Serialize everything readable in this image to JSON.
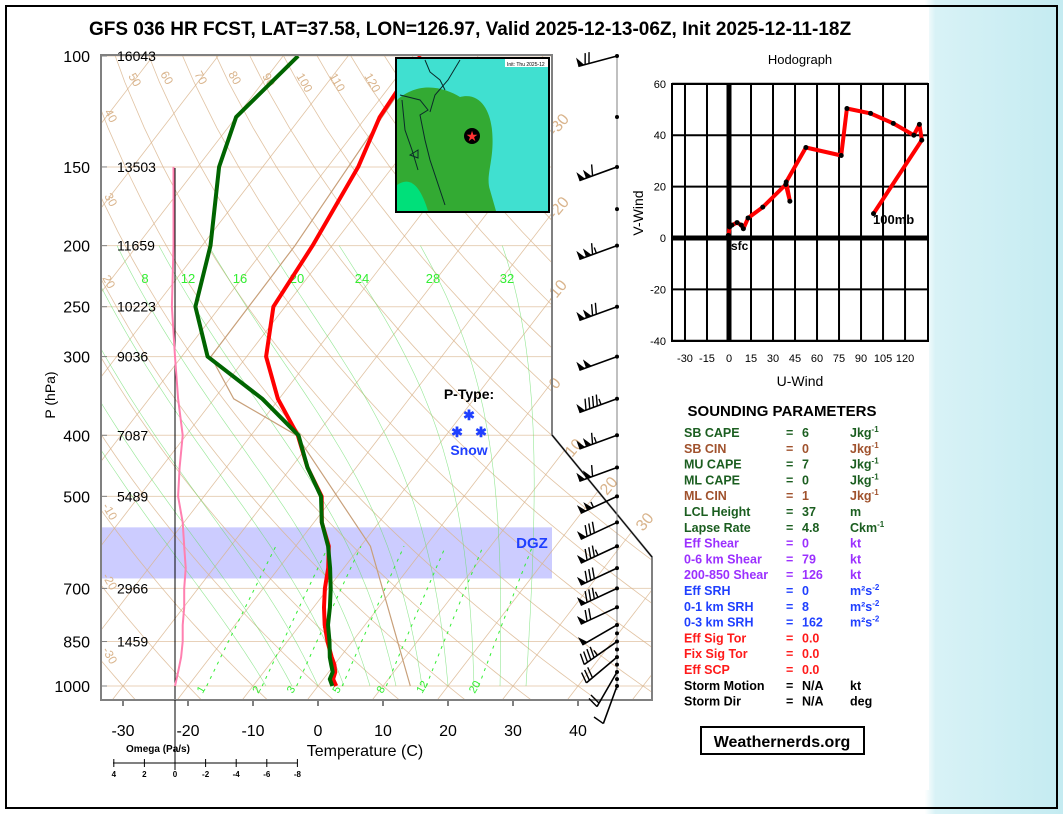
{
  "title": "GFS 036 HR FCST, LAT=37.58, LON=126.97, Valid 2025-12-13-06Z, Init 2025-12-11-18Z",
  "skewt": {
    "ylabel": "P (hPa)",
    "xlabel": "Temperature (C)",
    "pressure_labels": [
      {
        "p": 100,
        "label": "100",
        "height": "16043"
      },
      {
        "p": 150,
        "label": "150",
        "height": "13503"
      },
      {
        "p": 200,
        "label": "200",
        "height": "11659"
      },
      {
        "p": 250,
        "label": "250",
        "height": "10223"
      },
      {
        "p": 300,
        "label": "300",
        "height": "9036"
      },
      {
        "p": 400,
        "label": "400",
        "height": "7087"
      },
      {
        "p": 500,
        "label": "500",
        "height": "5489"
      },
      {
        "p": 700,
        "label": "700",
        "height": "2966"
      },
      {
        "p": 850,
        "label": "850",
        "height": "1459"
      },
      {
        "p": 1000,
        "label": "1000",
        "height": ""
      }
    ],
    "temp_ticks": [
      "-30",
      "-20",
      "-10",
      "0",
      "10",
      "20",
      "30",
      "40"
    ],
    "temp_tick_values": [
      -30,
      -20,
      -10,
      0,
      10,
      20,
      30,
      40
    ],
    "omega": {
      "title": "Omega (Pa/s)",
      "ticks": [
        "4",
        "2",
        "0",
        "-2",
        "-4",
        "-6",
        "-8"
      ],
      "tick_values": [
        4,
        2,
        0,
        -2,
        -4,
        -6,
        -8
      ]
    },
    "mixing_ratio_labels": [
      "1",
      "2",
      "3",
      "5",
      "8",
      "12",
      "20"
    ],
    "mixing_ratio_values": [
      1,
      2,
      3,
      5,
      8,
      12,
      20
    ],
    "moist_labels": [
      "8",
      "12",
      "16",
      "20",
      "24",
      "28",
      "32"
    ],
    "theta_top_labels": [
      "50",
      "60",
      "70",
      "80",
      "90",
      "100",
      "110",
      "120"
    ],
    "theta_left_labels": [
      "40",
      "30",
      "20",
      "-10",
      "-20",
      "-30"
    ],
    "isotherm_right_labels": [
      "-30",
      "-20",
      "-10",
      "0",
      "10",
      "20",
      "30"
    ],
    "dgz_label": "DGZ",
    "dgz_range_hpa": [
      560,
      675
    ],
    "ptype": {
      "title": "P-Type:",
      "value": "Snow",
      "symbol": "✱"
    }
  },
  "chart_data": [
    {
      "type": "line",
      "title": "Skew-T log-P sounding",
      "xlabel": "Temperature (C)",
      "ylabel": "P (hPa)",
      "xlim": [
        -35,
        45
      ],
      "ylim": [
        1000,
        100
      ],
      "pressure": [
        1000,
        975,
        950,
        925,
        900,
        850,
        800,
        750,
        700,
        650,
        600,
        550,
        500,
        450,
        400,
        350,
        300,
        250,
        200,
        150,
        125,
        100
      ],
      "series": [
        {
          "name": "Temperature",
          "color": "#ff0000",
          "values": [
            2.8,
            1.5,
            1.0,
            0.0,
            -1.3,
            -3.8,
            -6.2,
            -8.4,
            -10.5,
            -12.4,
            -14.9,
            -18.8,
            -21.9,
            -27.5,
            -32.8,
            -40.2,
            -47.0,
            -51.8,
            -53.0,
            -55.3,
            -57.9,
            -58.9
          ]
        },
        {
          "name": "Dewpoint",
          "color": "#006400",
          "values": [
            2.2,
            1.0,
            0.6,
            -0.5,
            -1.6,
            -3.5,
            -5.7,
            -7.5,
            -9.6,
            -12.1,
            -15.0,
            -18.8,
            -22.0,
            -27.5,
            -32.7,
            -42.6,
            -56.0,
            -63.8,
            -68.7,
            -76.7,
            -80.0,
            -77.7
          ]
        }
      ],
      "parcel": {
        "pressure": [
          1000,
          600,
          400,
          350,
          300,
          200,
          105
        ],
        "values": [
          14.2,
          -8.5,
          -33,
          -47,
          -55.5,
          -55.7,
          -58.2
        ]
      },
      "omega": {
        "pressure": [
          1000,
          950,
          900,
          850,
          800,
          750,
          700,
          650,
          600,
          550,
          500,
          450,
          400,
          350,
          300,
          250,
          200,
          150
        ],
        "values": [
          0,
          -0.2,
          -0.4,
          -0.5,
          -0.5,
          -0.6,
          -0.6,
          -0.7,
          -0.6,
          -0.5,
          -0.2,
          -0.3,
          -0.5,
          -0.2,
          0.0,
          0.2,
          0.1,
          0.1
        ]
      },
      "winds": {
        "pressure": [
          100,
          150,
          200,
          250,
          300,
          350,
          400,
          450,
          500,
          550,
          600,
          650,
          700,
          750,
          800,
          850,
          900,
          950,
          1000
        ],
        "speed_kt": [
          70,
          110,
          115,
          120,
          100,
          95,
          115,
          110,
          105,
          80,
          85,
          80,
          85,
          70,
          50,
          45,
          30,
          20,
          10
        ],
        "direction_deg": [
          255,
          250,
          250,
          250,
          250,
          250,
          250,
          250,
          245,
          245,
          245,
          245,
          245,
          245,
          240,
          235,
          230,
          210,
          200
        ]
      }
    },
    {
      "type": "line",
      "title": "Hodograph",
      "xlabel": "U-Wind",
      "ylabel": "V-Wind",
      "xlim": [
        -40,
        135
      ],
      "ylim": [
        -40,
        60
      ],
      "xticks": [
        "-30",
        "-15",
        "0",
        "15",
        "30",
        "45",
        "60",
        "75",
        "90",
        "105",
        "120"
      ],
      "xtick_values": [
        -30,
        -15,
        0,
        15,
        30,
        45,
        60,
        75,
        90,
        105,
        120
      ],
      "yticks": [
        "60",
        "40",
        "20",
        "0",
        "-20",
        "-40"
      ],
      "ytick_values": [
        60,
        40,
        20,
        0,
        -20,
        -40
      ],
      "u": [
        -0.5,
        0.5,
        2,
        5.5,
        8.4,
        9.8,
        13,
        23,
        38.7,
        41.5,
        39,
        52.4,
        76.5,
        80.4,
        96.5,
        112,
        126,
        129.8,
        131.4,
        98.5
      ],
      "v": [
        1,
        4.3,
        5,
        6,
        5,
        3.6,
        7.8,
        12,
        20.8,
        14.3,
        21.8,
        35.2,
        32.1,
        50.4,
        48.5,
        44.6,
        40,
        44.2,
        38.1,
        9.5
      ],
      "start_label": "sfc",
      "end_label": "100mb"
    }
  ],
  "params": {
    "title": "SOUNDING PARAMETERS",
    "rows": [
      {
        "label": "SB CAPE",
        "value": "6",
        "unit": "Jkg",
        "sup": "-1",
        "color": "#1b5e20"
      },
      {
        "label": "SB CIN",
        "value": "0",
        "unit": "Jkg",
        "sup": "-1",
        "color": "#a0522d"
      },
      {
        "label": "MU CAPE",
        "value": "7",
        "unit": "Jkg",
        "sup": "-1",
        "color": "#1b5e20"
      },
      {
        "label": "ML CAPE",
        "value": "0",
        "unit": "Jkg",
        "sup": "-1",
        "color": "#1b5e20"
      },
      {
        "label": "ML CIN",
        "value": "1",
        "unit": "Jkg",
        "sup": "-1",
        "color": "#a0522d"
      },
      {
        "label": "LCL Height",
        "value": "37",
        "unit": "m",
        "sup": "",
        "color": "#1b5e20"
      },
      {
        "label": "Lapse Rate",
        "value": "4.8",
        "unit": "Ckm",
        "sup": "-1",
        "color": "#1b5e20"
      },
      {
        "label": "Eff Shear",
        "value": "0",
        "unit": "kt",
        "sup": "",
        "color": "#9b30ff"
      },
      {
        "label": "0-6 km Shear",
        "value": "79",
        "unit": "kt",
        "sup": "",
        "color": "#9b30ff"
      },
      {
        "label": "200-850 Shear",
        "value": "126",
        "unit": "kt",
        "sup": "",
        "color": "#9b30ff"
      },
      {
        "label": "Eff SRH",
        "value": "0",
        "unit": "m²s",
        "sup": "-2",
        "color": "#1f3fff"
      },
      {
        "label": "0-1 km SRH",
        "value": "8",
        "unit": "m²s",
        "sup": "-2",
        "color": "#1f3fff"
      },
      {
        "label": "0-3 km SRH",
        "value": "162",
        "unit": "m²s",
        "sup": "-2",
        "color": "#1f3fff"
      },
      {
        "label": "Eff Sig Tor",
        "value": "0.0",
        "unit": "",
        "sup": "",
        "color": "#ff1a1a"
      },
      {
        "label": "Fix Sig Tor",
        "value": "0.0",
        "unit": "",
        "sup": "",
        "color": "#ff1a1a"
      },
      {
        "label": "Eff SCP",
        "value": "0.0",
        "unit": "",
        "sup": "",
        "color": "#ff1a1a"
      },
      {
        "label": "Storm Motion",
        "value": "N/A",
        "unit": "kt",
        "sup": "",
        "color": "#000000"
      },
      {
        "label": "Storm Dir",
        "value": "N/A",
        "unit": "deg",
        "sup": "",
        "color": "#000000"
      }
    ],
    "equals": "="
  },
  "inset_map": {
    "header": "Init: Thu 2025-12"
  },
  "brand": "Weathernerds.org",
  "colors": {
    "temp": "#ff0000",
    "dew": "#006400",
    "omega": "#ff80b0",
    "tan": "#d9b48c",
    "mix": "#33ee33",
    "dgz": "#ccccff"
  }
}
